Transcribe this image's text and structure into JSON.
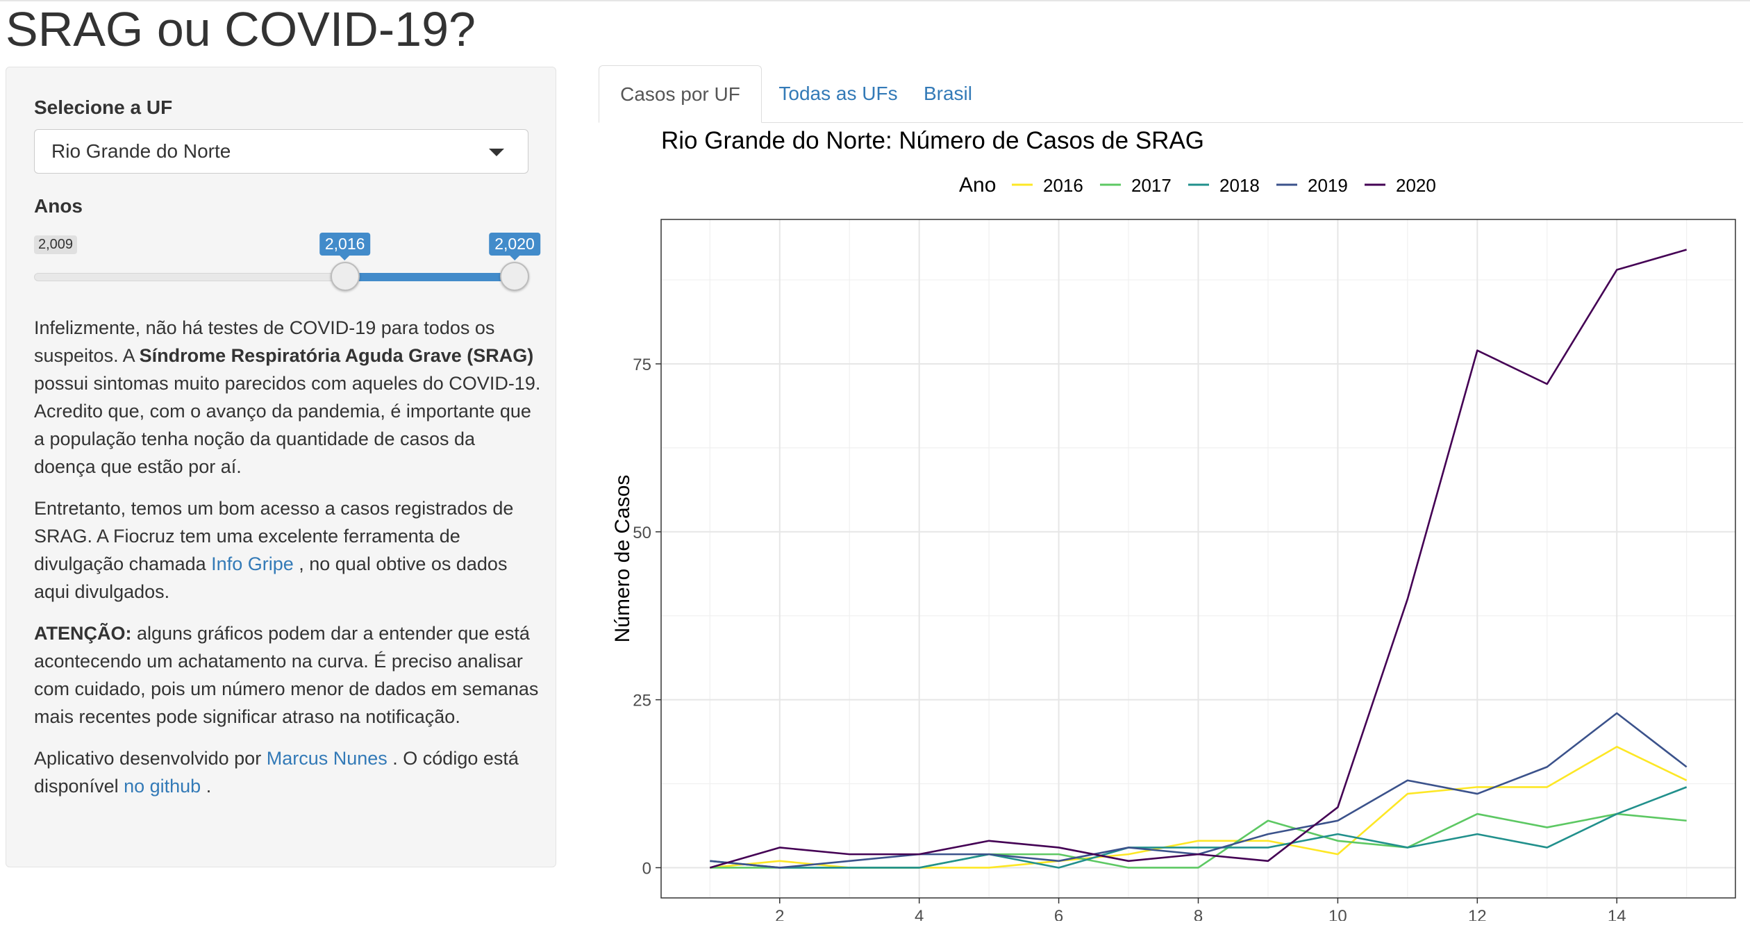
{
  "page": {
    "title": "SRAG ou COVID-19?"
  },
  "sidebar": {
    "uf_label": "Selecione a UF",
    "uf_selected": "Rio Grande do Norte",
    "anos_label": "Anos",
    "slider": {
      "min": 2009,
      "max": 2020,
      "from": 2016,
      "to": 2020,
      "min_label": "2,009",
      "from_label": "2,016",
      "to_label": "2,020"
    },
    "p1_a": "Infelizmente, não há testes de COVID-19 para todos os suspeitos. A ",
    "p1_bold": "Síndrome Respiratória Aguda Grave (SRAG)",
    "p1_b": " possui sintomas muito parecidos com aqueles do COVID-19. Acredito que, com o avanço da pandemia, é importante que a população tenha noção da quantidade de casos da doença que estão por aí.",
    "p2_a": "Entretanto, temos um bom acesso a casos registrados de SRAG. A Fiocruz tem uma excelente ferramenta de divulgação chamada ",
    "p2_link": "Info Gripe",
    "p2_b": " , no qual obtive os dados aqui divulgados.",
    "p3_bold": "ATENÇÃO:",
    "p3_b": " alguns gráficos podem dar a entender que está acontecendo um achatamento na curva. É preciso analisar com cuidado, pois um número menor de dados em semanas mais recentes pode significar atraso na notificação.",
    "p4_a": "Aplicativo desenvolvido por ",
    "p4_link1": "Marcus Nunes",
    "p4_b": " . O código está disponível ",
    "p4_link2": "no github",
    "p4_c": " ."
  },
  "tabs": [
    {
      "label": "Casos por UF",
      "active": true
    },
    {
      "label": "Todas as UFs",
      "active": false
    },
    {
      "label": "Brasil",
      "active": false
    }
  ],
  "colors": {
    "link": "#337ab7",
    "slider_accent": "#428bca"
  },
  "chart_data": {
    "type": "line",
    "title": "Rio Grande do Norte: Número de Casos de SRAG",
    "legend_title": "Ano",
    "legend_position": "top",
    "xlabel": "",
    "ylabel": "Número de Casos",
    "x": [
      1,
      2,
      3,
      4,
      5,
      6,
      7,
      8,
      9,
      10,
      11,
      12,
      13,
      14,
      15
    ],
    "xlim": [
      0.3,
      15.7
    ],
    "ylim": [
      -4.5,
      96.5
    ],
    "x_ticks": [
      2,
      4,
      6,
      8,
      10,
      12,
      14
    ],
    "y_ticks": [
      0,
      25,
      50,
      75
    ],
    "grid": true,
    "series": [
      {
        "name": "2016",
        "color": "#FDE725",
        "values": [
          0,
          1,
          0,
          0,
          0,
          1,
          2,
          4,
          4,
          2,
          11,
          12,
          12,
          18,
          13
        ]
      },
      {
        "name": "2017",
        "color": "#5DC863",
        "values": [
          0,
          0,
          0,
          0,
          2,
          2,
          0,
          0,
          7,
          4,
          3,
          8,
          6,
          8,
          7
        ]
      },
      {
        "name": "2018",
        "color": "#21908C",
        "values": [
          1,
          0,
          0,
          0,
          2,
          0,
          3,
          3,
          3,
          5,
          3,
          5,
          3,
          8,
          12
        ]
      },
      {
        "name": "2019",
        "color": "#3B528B",
        "values": [
          1,
          0,
          1,
          2,
          2,
          1,
          3,
          2,
          5,
          7,
          13,
          11,
          15,
          23,
          15
        ]
      },
      {
        "name": "2020",
        "color": "#440154",
        "values": [
          0,
          3,
          2,
          2,
          4,
          3,
          1,
          2,
          1,
          9,
          40,
          77,
          72,
          89,
          92
        ]
      }
    ]
  }
}
